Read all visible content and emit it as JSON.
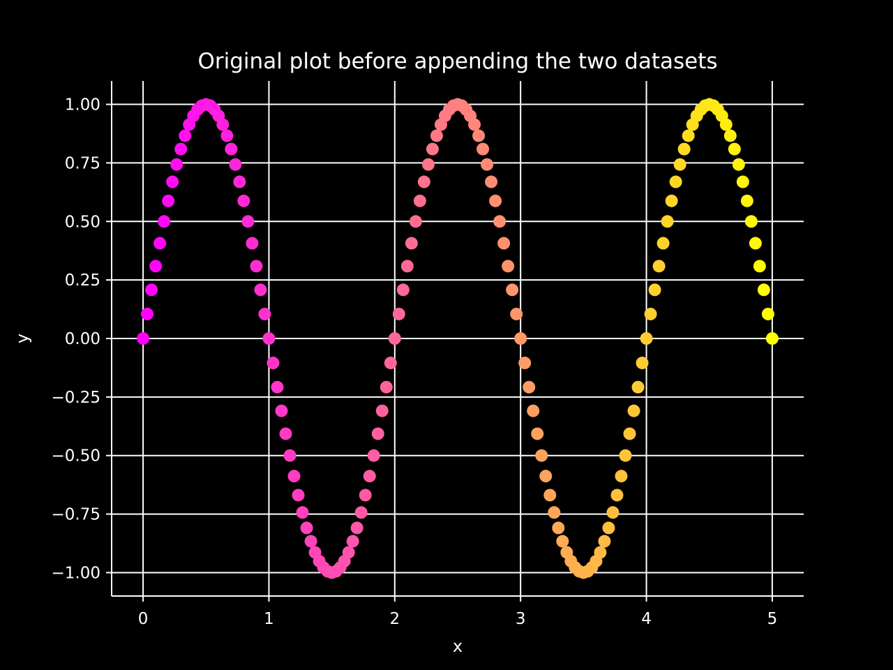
{
  "chart_data": {
    "type": "scatter",
    "title": "Original plot before appending the two datasets",
    "xlabel": "x",
    "ylabel": "y",
    "xlim": [
      -0.25,
      5.25
    ],
    "ylim": [
      -1.1,
      1.1
    ],
    "xticks": [
      0,
      1,
      2,
      3,
      4,
      5
    ],
    "xtick_labels": [
      "0",
      "1",
      "2",
      "3",
      "4",
      "5"
    ],
    "yticks": [
      1.0,
      0.75,
      0.5,
      0.25,
      0.0,
      -0.25,
      -0.5,
      -0.75,
      -1.0
    ],
    "ytick_labels": [
      "1.00",
      "0.75",
      "0.50",
      "0.25",
      "0.00",
      "−0.25",
      "−0.50",
      "−0.75",
      "−1.00"
    ],
    "grid": true,
    "background": "#000000",
    "foreground": "#ffffff",
    "colormap": "spring",
    "colormap_stops": [
      "#ff00ff",
      "#ffff00"
    ],
    "series": [
      {
        "function": "y = sin(pi * x)",
        "x_start": 0,
        "x_end": 5,
        "x_step": 0.0333,
        "color_by": "x"
      }
    ]
  }
}
